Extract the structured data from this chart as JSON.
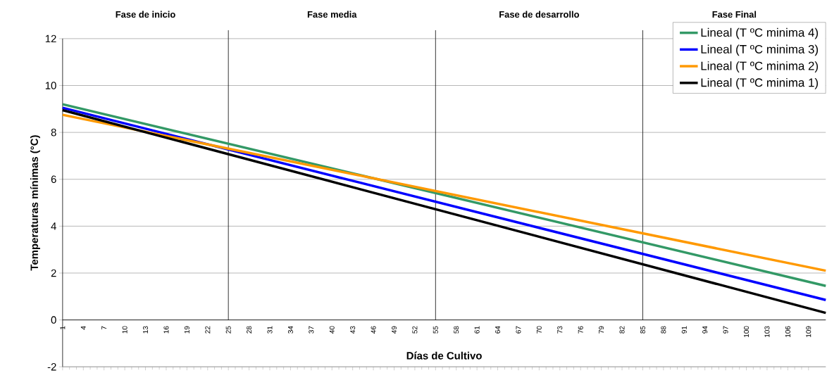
{
  "chart_data": {
    "type": "line",
    "xlabel": "Días de Cultivo",
    "ylabel": "Temperaturas mínimas (°C)",
    "x": [
      1,
      111.5
    ],
    "series": [
      {
        "name": "Lineal (T ºC minima 4)",
        "color": "#339966",
        "values": [
          9.2,
          1.45
        ]
      },
      {
        "name": "Lineal (T ºC minima 3)",
        "color": "#0000ff",
        "values": [
          9.05,
          0.85
        ]
      },
      {
        "name": "Lineal (T ºC minima 2)",
        "color": "#ff9900",
        "values": [
          8.75,
          2.1
        ]
      },
      {
        "name": "Lineal (T ºC minima 1)",
        "color": "#000000",
        "values": [
          8.95,
          0.3
        ]
      }
    ],
    "xlim": [
      1,
      111.5
    ],
    "xticks": [
      1,
      4,
      7,
      10,
      13,
      16,
      19,
      22,
      25,
      28,
      31,
      34,
      37,
      40,
      43,
      46,
      49,
      52,
      55,
      58,
      61,
      64,
      67,
      70,
      73,
      76,
      79,
      82,
      85,
      88,
      91,
      94,
      97,
      100,
      103,
      106,
      109
    ],
    "ylim": [
      -2,
      12
    ],
    "yticks": [
      -2,
      0,
      2,
      4,
      6,
      8,
      10,
      12
    ],
    "grid": "y",
    "legend": "top right",
    "marker": "none",
    "line_style": "solid",
    "ref_lines": [
      {
        "axis": "x",
        "value": 25,
        "color": "#000000"
      },
      {
        "axis": "x",
        "value": 55,
        "color": "#000000"
      },
      {
        "axis": "x",
        "value": 85,
        "color": "#000000"
      }
    ],
    "annotations": [
      "Fase de inicio",
      "Fase media",
      "Fase de desarrollo",
      "Fase Final"
    ]
  }
}
